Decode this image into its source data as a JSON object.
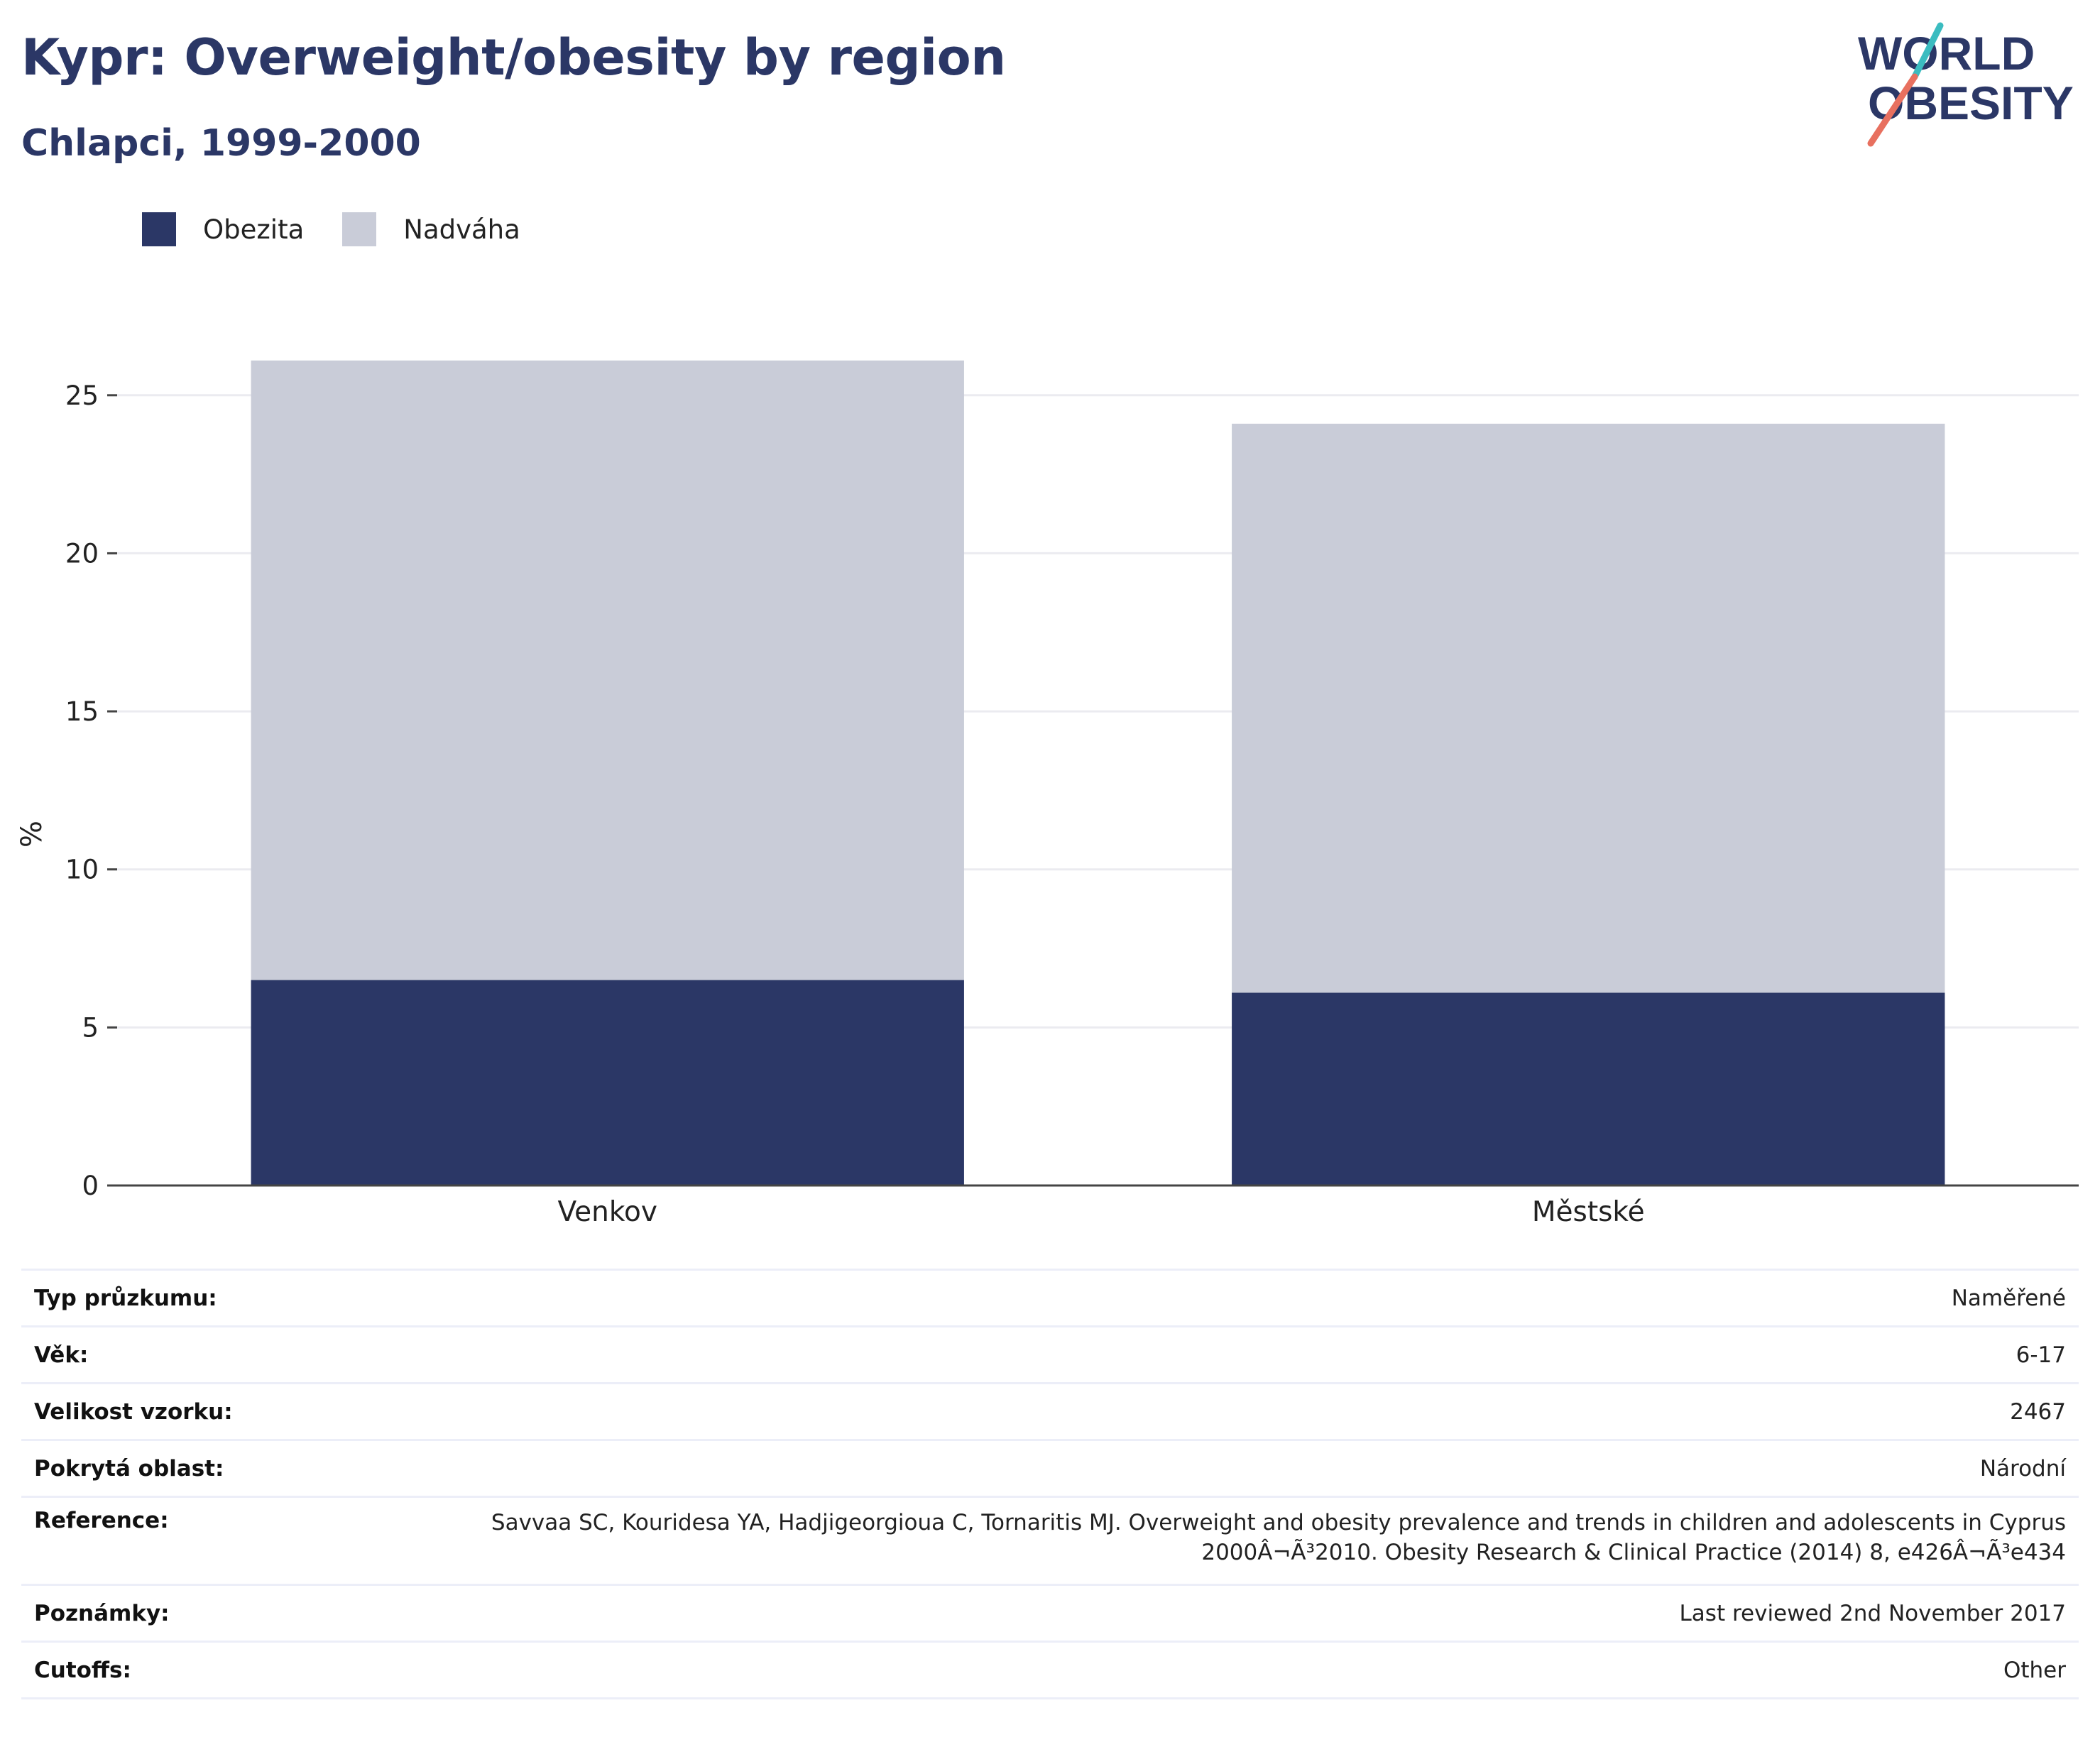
{
  "header": {
    "title": "Kypr: Overweight/obesity by region",
    "subtitle": "Chlapci, 1999-2000"
  },
  "logo": {
    "line1": "WORLD",
    "line2": "OBESITY"
  },
  "colors": {
    "obezita": "#2b3766",
    "nadvaha": "#c9ccd8",
    "title": "#2b3766",
    "logo_teal": "#3bbcc0",
    "logo_coral": "#e8705f"
  },
  "chart_data": {
    "type": "bar",
    "stacked": true,
    "categories": [
      "Venkov",
      "Městské"
    ],
    "series": [
      {
        "name": "Obezita",
        "values": [
          6.5,
          6.1
        ],
        "color": "#2b3766"
      },
      {
        "name": "Nadváha",
        "values": [
          19.6,
          18.0
        ],
        "color": "#c9ccd8"
      }
    ],
    "ylabel": "%",
    "ylim": [
      0,
      26.5
    ],
    "yticks": [
      0,
      5,
      10,
      15,
      20,
      25
    ],
    "grid": true,
    "legend_position": "top-left"
  },
  "meta": {
    "rows": [
      {
        "label": "Typ průzkumu:",
        "value": "Naměřené"
      },
      {
        "label": "Věk:",
        "value": "6-17"
      },
      {
        "label": "Velikost vzorku:",
        "value": "2467"
      },
      {
        "label": "Pokrytá oblast:",
        "value": "Národní"
      },
      {
        "label": "Reference:",
        "value": "Savvaa SC, Kouridesa YA, Hadjigeorgioua C, Tornaritis MJ. Overweight and obesity prevalence and trends in children and adolescents in Cyprus 2000Â¬Ã³2010. Obesity Research & Clinical Practice (2014) 8, e426Â¬Ã³e434"
      },
      {
        "label": "Poznámky:",
        "value": "Last reviewed 2nd November 2017"
      },
      {
        "label": "Cutoffs:",
        "value": "Other"
      }
    ]
  }
}
